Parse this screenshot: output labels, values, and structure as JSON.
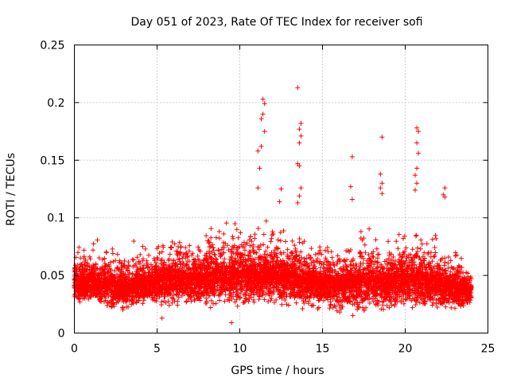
{
  "chart_data": {
    "type": "scatter",
    "title": "Day 051 of 2023, Rate Of TEC Index for receiver sofi",
    "xlabel": "GPS time / hours",
    "ylabel": "ROTI / TECUs",
    "xlim": [
      0,
      25
    ],
    "ylim": [
      0,
      0.25
    ],
    "xticks": [
      0,
      5,
      10,
      15,
      20,
      25
    ],
    "yticks": [
      0,
      0.05,
      0.1,
      0.15,
      0.2,
      0.25
    ],
    "xtick_labels": [
      "0",
      "5",
      "10",
      "15",
      "20",
      "25"
    ],
    "ytick_labels": [
      "0",
      "0.05",
      "0.1",
      "0.15",
      "0.2",
      "0.25"
    ],
    "grid": true,
    "marker": "+",
    "color": "#ff0000",
    "data_range_hours": [
      0,
      24
    ],
    "outliers": [
      {
        "x": 11.4,
        "y": 0.203
      },
      {
        "x": 11.5,
        "y": 0.199
      },
      {
        "x": 11.4,
        "y": 0.19
      },
      {
        "x": 11.3,
        "y": 0.186
      },
      {
        "x": 11.5,
        "y": 0.175
      },
      {
        "x": 11.3,
        "y": 0.162
      },
      {
        "x": 11.1,
        "y": 0.158
      },
      {
        "x": 11.2,
        "y": 0.143
      },
      {
        "x": 11.1,
        "y": 0.126
      },
      {
        "x": 12.5,
        "y": 0.125
      },
      {
        "x": 12.4,
        "y": 0.114
      },
      {
        "x": 13.5,
        "y": 0.213
      },
      {
        "x": 13.7,
        "y": 0.182
      },
      {
        "x": 13.6,
        "y": 0.177
      },
      {
        "x": 13.7,
        "y": 0.171
      },
      {
        "x": 13.6,
        "y": 0.165
      },
      {
        "x": 13.5,
        "y": 0.147
      },
      {
        "x": 13.6,
        "y": 0.145
      },
      {
        "x": 13.7,
        "y": 0.126
      },
      {
        "x": 13.6,
        "y": 0.119
      },
      {
        "x": 13.5,
        "y": 0.113
      },
      {
        "x": 16.8,
        "y": 0.153
      },
      {
        "x": 16.7,
        "y": 0.127
      },
      {
        "x": 16.8,
        "y": 0.116
      },
      {
        "x": 18.6,
        "y": 0.17
      },
      {
        "x": 18.5,
        "y": 0.138
      },
      {
        "x": 18.6,
        "y": 0.13
      },
      {
        "x": 18.5,
        "y": 0.126
      },
      {
        "x": 18.6,
        "y": 0.121
      },
      {
        "x": 20.7,
        "y": 0.178
      },
      {
        "x": 20.8,
        "y": 0.175
      },
      {
        "x": 20.7,
        "y": 0.165
      },
      {
        "x": 20.8,
        "y": 0.156
      },
      {
        "x": 20.7,
        "y": 0.143
      },
      {
        "x": 20.6,
        "y": 0.137
      },
      {
        "x": 20.7,
        "y": 0.13
      },
      {
        "x": 20.6,
        "y": 0.124
      },
      {
        "x": 22.4,
        "y": 0.126
      },
      {
        "x": 22.3,
        "y": 0.12
      },
      {
        "x": 22.4,
        "y": 0.118
      },
      {
        "x": 9.5,
        "y": 0.009
      },
      {
        "x": 5.3,
        "y": 0.013
      }
    ],
    "bulk_envelope": [
      {
        "x": 0,
        "low": 0.025,
        "high": 0.08
      },
      {
        "x": 1.5,
        "low": 0.018,
        "high": 0.088
      },
      {
        "x": 3,
        "low": 0.015,
        "high": 0.08
      },
      {
        "x": 4.5,
        "low": 0.02,
        "high": 0.085
      },
      {
        "x": 5.5,
        "low": 0.018,
        "high": 0.095
      },
      {
        "x": 7,
        "low": 0.02,
        "high": 0.09
      },
      {
        "x": 8.5,
        "low": 0.02,
        "high": 0.103
      },
      {
        "x": 10,
        "low": 0.02,
        "high": 0.105
      },
      {
        "x": 11.5,
        "low": 0.022,
        "high": 0.1
      },
      {
        "x": 13,
        "low": 0.02,
        "high": 0.098
      },
      {
        "x": 14.5,
        "low": 0.018,
        "high": 0.088
      },
      {
        "x": 16,
        "low": 0.015,
        "high": 0.09
      },
      {
        "x": 17.5,
        "low": 0.012,
        "high": 0.1
      },
      {
        "x": 19,
        "low": 0.015,
        "high": 0.098
      },
      {
        "x": 20.5,
        "low": 0.018,
        "high": 0.1
      },
      {
        "x": 22,
        "low": 0.015,
        "high": 0.093
      },
      {
        "x": 23,
        "low": 0.015,
        "high": 0.083
      },
      {
        "x": 24,
        "low": 0.02,
        "high": 0.062
      }
    ]
  }
}
